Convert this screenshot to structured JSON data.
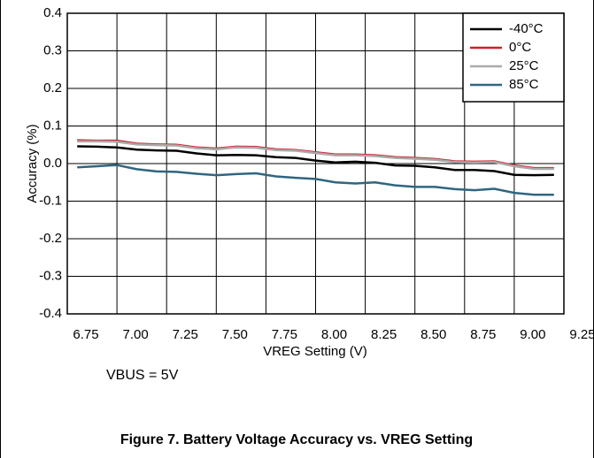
{
  "chart_data": {
    "type": "line",
    "xlabel": "VREG Setting (V)",
    "ylabel": "Accuracy (%)",
    "annotation": "VBUS = 5V",
    "caption": "Figure 7. Battery Voltage Accuracy vs. VREG Setting",
    "x": [
      6.8,
      6.9,
      7.0,
      7.1,
      7.2,
      7.3,
      7.4,
      7.5,
      7.6,
      7.7,
      7.8,
      7.9,
      8.0,
      8.1,
      8.2,
      8.3,
      8.4,
      8.5,
      8.6,
      8.7,
      8.8,
      8.9,
      9.0,
      9.1,
      9.2
    ],
    "series": [
      {
        "name": "-40°C",
        "color": "#000000",
        "values": [
          0.046,
          0.045,
          0.043,
          0.037,
          0.035,
          0.034,
          0.027,
          0.022,
          0.023,
          0.022,
          0.017,
          0.015,
          0.008,
          0.003,
          0.005,
          0.002,
          -0.005,
          -0.006,
          -0.01,
          -0.017,
          -0.017,
          -0.02,
          -0.03,
          -0.031,
          -0.03
        ]
      },
      {
        "name": "0°C",
        "color": "#d0202a",
        "values": [
          0.062,
          0.061,
          0.061,
          0.053,
          0.051,
          0.05,
          0.043,
          0.04,
          0.045,
          0.044,
          0.038,
          0.036,
          0.03,
          0.024,
          0.024,
          0.022,
          0.017,
          0.015,
          0.012,
          0.006,
          0.005,
          0.006,
          -0.005,
          -0.012,
          -0.012
        ]
      },
      {
        "name": "25°C",
        "color": "#aaaaaa",
        "values": [
          0.059,
          0.059,
          0.058,
          0.051,
          0.049,
          0.048,
          0.041,
          0.038,
          0.043,
          0.042,
          0.036,
          0.034,
          0.028,
          0.022,
          0.022,
          0.02,
          0.015,
          0.013,
          0.01,
          0.004,
          0.003,
          0.004,
          -0.007,
          -0.014,
          -0.014
        ]
      },
      {
        "name": "85°C",
        "color": "#2f6680",
        "values": [
          -0.01,
          -0.007,
          -0.004,
          -0.015,
          -0.021,
          -0.022,
          -0.027,
          -0.031,
          -0.028,
          -0.026,
          -0.034,
          -0.038,
          -0.041,
          -0.05,
          -0.053,
          -0.05,
          -0.058,
          -0.062,
          -0.062,
          -0.068,
          -0.071,
          -0.067,
          -0.078,
          -0.083,
          -0.083
        ]
      }
    ],
    "xlim": [
      6.75,
      9.25
    ],
    "xticks": [
      {
        "value": 6.75,
        "label": "6.75"
      },
      {
        "value": 7.0,
        "label": "7.00"
      },
      {
        "value": 7.25,
        "label": "7.25"
      },
      {
        "value": 7.5,
        "label": "7.50"
      },
      {
        "value": 7.75,
        "label": "7.75"
      },
      {
        "value": 8.0,
        "label": "8.00"
      },
      {
        "value": 8.25,
        "label": "8.25"
      },
      {
        "value": 8.5,
        "label": "8.50"
      },
      {
        "value": 8.75,
        "label": "8.75"
      },
      {
        "value": 9.0,
        "label": "9.00"
      },
      {
        "value": 9.25,
        "label": "9.25"
      }
    ],
    "ylim": [
      -0.4,
      0.4
    ],
    "yticks": [
      -0.4,
      -0.3,
      -0.2,
      -0.1,
      {
        "value": 0,
        "label": "0.0"
      },
      0.1,
      0.2,
      0.3,
      0.4
    ],
    "grid": true,
    "legend": "top-right"
  }
}
